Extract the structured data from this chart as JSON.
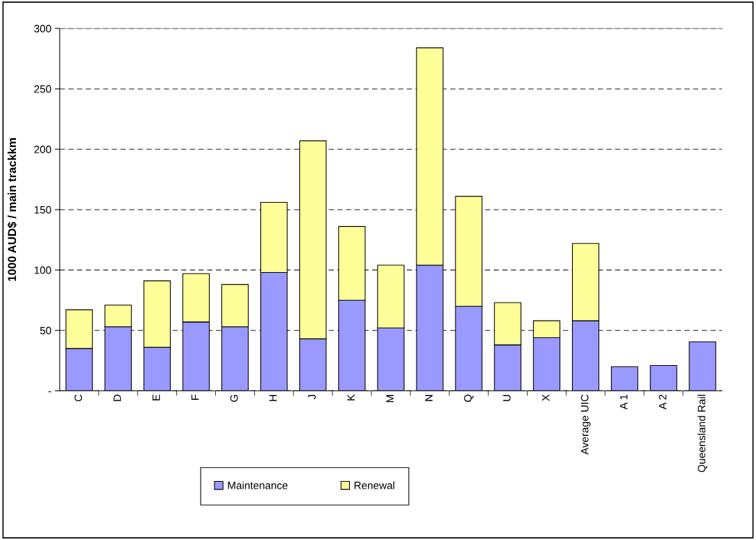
{
  "chart_data": {
    "type": "bar",
    "stacked": true,
    "ylabel": "1000 AUD$ / main trackkm",
    "categories": [
      "C",
      "D",
      "E",
      "F",
      "G",
      "H",
      "J",
      "K",
      "M",
      "N",
      "Q",
      "U",
      "X",
      "Average UIC",
      "A 1",
      "A 2",
      "Queensland Rail"
    ],
    "series": [
      {
        "name": "Maintenance",
        "color": "#9999ff",
        "values": [
          35,
          53,
          36,
          57,
          53,
          98,
          43,
          75,
          52,
          104,
          70,
          38,
          44,
          58,
          20,
          21,
          40.5
        ]
      },
      {
        "name": "Renewal",
        "color": "#ffff99",
        "values": [
          32,
          18,
          55,
          40,
          35,
          58,
          164,
          61,
          52,
          180,
          91,
          35,
          14,
          64,
          null,
          null,
          null
        ]
      }
    ],
    "ylim": [
      0,
      300
    ],
    "yticks": [
      {
        "value": 0,
        "label": "-"
      },
      50,
      100,
      150,
      200,
      250,
      300
    ],
    "grid": "y",
    "legend": "bottom"
  }
}
